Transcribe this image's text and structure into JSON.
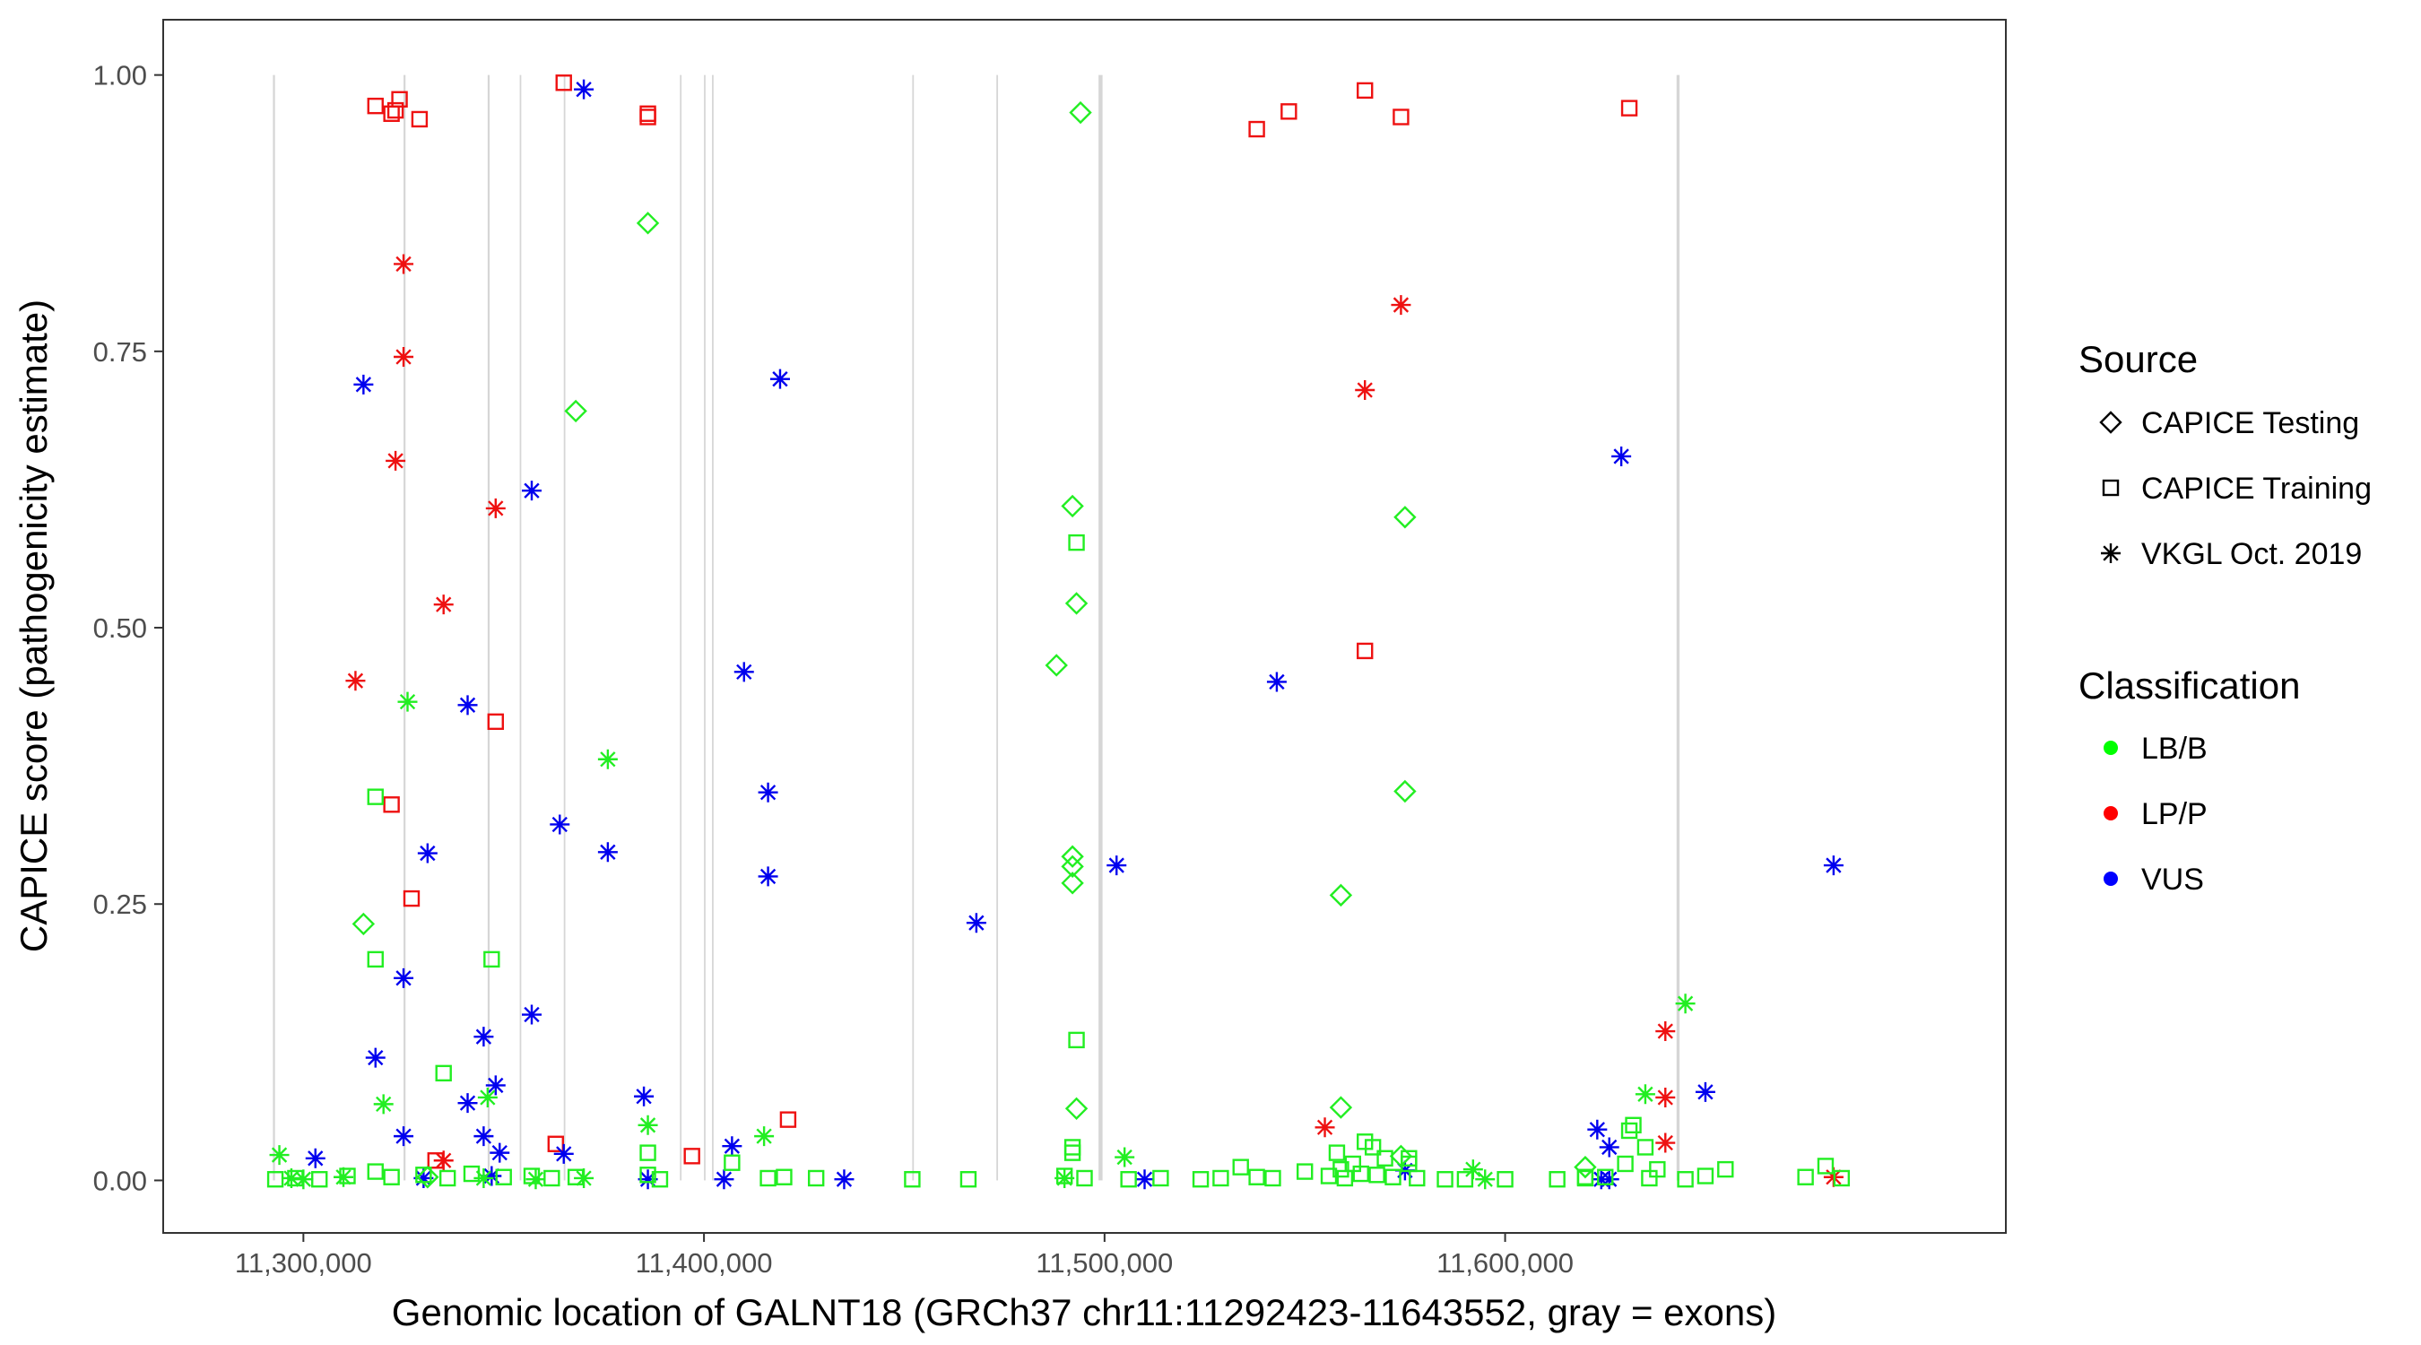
{
  "chart_data": {
    "type": "scatter",
    "title": "",
    "xlabel": "Genomic location of GALNT18 (GRCh37 chr11:11292423-11643552, gray = exons)",
    "ylabel": "CAPICE score (pathogenicity estimate)",
    "xlim": [
      11265000,
      11725000
    ],
    "ylim": [
      -0.0475,
      1.05
    ],
    "x_ticks": [
      11300000,
      11400000,
      11500000,
      11600000
    ],
    "x_tick_labels": [
      "11,300,000",
      "11,400,000",
      "11,500,000",
      "11,600,000"
    ],
    "y_ticks": [
      0,
      0.25,
      0.5,
      0.75,
      1.0
    ],
    "y_tick_labels": [
      "0.00",
      "0.25",
      "0.50",
      "0.75",
      "1.00"
    ],
    "grid": false,
    "exons": [
      [
        11292400,
        11292900
      ],
      [
        11325000,
        11325500
      ],
      [
        11346000,
        11346500
      ],
      [
        11354000,
        11354400
      ],
      [
        11365000,
        11365400
      ],
      [
        11394000,
        11394400
      ],
      [
        11400000,
        11400400
      ],
      [
        11402000,
        11402400
      ],
      [
        11452000,
        11452400
      ],
      [
        11473000,
        11473400
      ],
      [
        11498500,
        11499500
      ],
      [
        11642800,
        11643552
      ]
    ],
    "legend": {
      "position": "right",
      "source_title": "Source",
      "source_items": [
        {
          "label": "CAPICE Testing",
          "shape": "diamond"
        },
        {
          "label": "CAPICE Training",
          "shape": "square"
        },
        {
          "label": "VKGL Oct. 2019",
          "shape": "asterisk"
        }
      ],
      "class_title": "Classification",
      "class_items": [
        {
          "label": "LB/B",
          "color": "#00ff00"
        },
        {
          "label": "LP/P",
          "color": "#ff0000"
        },
        {
          "label": "VUS",
          "color": "#0000ff"
        }
      ]
    },
    "colors": {
      "LB/B": "#22ee22",
      "LP/P": "#ee1111",
      "VUS": "#0000ee"
    },
    "series": [
      {
        "name": "CAPICE Training / LP/P",
        "source": "CAPICE Training",
        "classification": "LP/P",
        "x": [
          11318000,
          11322000,
          11324000,
          11323000,
          11329000,
          11365000,
          11386000,
          11386000,
          11327000,
          11322000,
          11348000,
          11363000,
          11333000,
          11421000,
          11397000,
          11538000,
          11546000,
          11565000,
          11574000,
          11631000,
          11565000
        ],
        "y": [
          0.972,
          0.965,
          0.978,
          0.968,
          0.96,
          0.993,
          0.965,
          0.962,
          0.255,
          0.34,
          0.415,
          0.033,
          0.018,
          0.055,
          0.022,
          0.951,
          0.967,
          0.986,
          0.962,
          0.97,
          0.479
        ]
      },
      {
        "name": "VKGL Oct. 2019 / LP/P",
        "source": "VKGL Oct. 2019",
        "classification": "LP/P",
        "x": [
          11325000,
          11325000,
          11323000,
          11348000,
          11335000,
          11313000,
          11335000,
          11555000,
          11565000,
          11574000,
          11640000,
          11640000,
          11640000,
          11682000
        ],
        "y": [
          0.829,
          0.745,
          0.651,
          0.608,
          0.521,
          0.452,
          0.018,
          0.048,
          0.715,
          0.792,
          0.135,
          0.075,
          0.034,
          0.003
        ]
      },
      {
        "name": "VKGL Oct. 2019 / VUS",
        "source": "VKGL Oct. 2019",
        "classification": "VUS",
        "x": [
          11370000,
          11315000,
          11357000,
          11419000,
          11341000,
          11364000,
          11376000,
          11331000,
          11325000,
          11357000,
          11345000,
          11348000,
          11318000,
          11341000,
          11345000,
          11325000,
          11349000,
          11385000,
          11386000,
          11407000,
          11410000,
          11416000,
          11416000,
          11468000,
          11503000,
          11543000,
          11629000,
          11623000,
          11650000,
          11626000,
          11624000,
          11682000,
          11303000,
          11330000,
          11347000,
          11365000,
          11405000,
          11435000,
          11510000,
          11575000,
          11626000
        ],
        "y": [
          0.987,
          0.72,
          0.624,
          0.725,
          0.43,
          0.322,
          0.297,
          0.296,
          0.183,
          0.15,
          0.13,
          0.086,
          0.111,
          0.07,
          0.04,
          0.04,
          0.025,
          0.076,
          0.001,
          0.031,
          0.46,
          0.351,
          0.275,
          0.233,
          0.285,
          0.451,
          0.655,
          0.046,
          0.08,
          0.03,
          0.001,
          0.285,
          0.02,
          0.002,
          0.004,
          0.024,
          0.001,
          0.001,
          0.001,
          0.009,
          0.001
        ]
      },
      {
        "name": "VKGL Oct. 2019 / LB/B",
        "source": "VKGL Oct. 2019",
        "classification": "LB/B",
        "x": [
          11294000,
          11326000,
          11320000,
          11346000,
          11376000,
          11386000,
          11415000,
          11505000,
          11592000,
          11635000,
          11645000,
          11297000,
          11300000,
          11310000,
          11345000,
          11358000,
          11370000,
          11490000,
          11595000
        ],
        "y": [
          0.023,
          0.433,
          0.069,
          0.075,
          0.381,
          0.05,
          0.04,
          0.021,
          0.01,
          0.078,
          0.16,
          0.002,
          0.001,
          0.003,
          0.002,
          0.001,
          0.002,
          0.002,
          0.001
        ]
      },
      {
        "name": "CAPICE Training / LB/B",
        "source": "CAPICE Training",
        "classification": "LB/B",
        "x": [
          11318000,
          11318000,
          11347000,
          11335000,
          11493000,
          11493000,
          11492000,
          11492000,
          11386000,
          11386000,
          11558000,
          11565000,
          11567000,
          11559000,
          11562000,
          11570000,
          11576000,
          11576000,
          11631000,
          11632000,
          11635000,
          11638000,
          11630000,
          11620000,
          11293000,
          11298000,
          11304000,
          11311000,
          11318000,
          11322000,
          11330000,
          11336000,
          11342000,
          11350000,
          11357000,
          11362000,
          11368000,
          11389000,
          11407000,
          11416000,
          11420000,
          11428000,
          11452000,
          11466000,
          11490000,
          11495000,
          11506000,
          11514000,
          11524000,
          11529000,
          11534000,
          11538000,
          11542000,
          11550000,
          11556000,
          11560000,
          11564000,
          11568000,
          11572000,
          11578000,
          11585000,
          11590000,
          11600000,
          11613000,
          11620000,
          11625000,
          11636000,
          11645000,
          11650000,
          11655000,
          11675000,
          11680000,
          11684000
        ],
        "y": [
          0.347,
          0.2,
          0.2,
          0.097,
          0.577,
          0.127,
          0.03,
          0.025,
          0.025,
          0.005,
          0.025,
          0.035,
          0.03,
          0.01,
          0.015,
          0.02,
          0.02,
          0.015,
          0.045,
          0.05,
          0.03,
          0.01,
          0.015,
          0.003,
          0.001,
          0.002,
          0.001,
          0.004,
          0.008,
          0.003,
          0.005,
          0.002,
          0.006,
          0.003,
          0.004,
          0.002,
          0.003,
          0.001,
          0.016,
          0.002,
          0.003,
          0.002,
          0.001,
          0.001,
          0.004,
          0.002,
          0.001,
          0.002,
          0.001,
          0.002,
          0.012,
          0.003,
          0.002,
          0.008,
          0.004,
          0.002,
          0.006,
          0.005,
          0.003,
          0.002,
          0.001,
          0.001,
          0.001,
          0.001,
          0.002,
          0.003,
          0.002,
          0.001,
          0.004,
          0.01,
          0.003,
          0.013,
          0.002
        ]
      },
      {
        "name": "CAPICE Testing / LB/B",
        "source": "CAPICE Testing",
        "classification": "LB/B",
        "x": [
          11494000,
          11386000,
          11368000,
          11492000,
          11488000,
          11493000,
          11492000,
          11492000,
          11492000,
          11575000,
          11575000,
          11559000,
          11559000,
          11315000,
          11493000,
          11574000,
          11620000,
          11331000
        ],
        "y": [
          0.966,
          0.866,
          0.696,
          0.61,
          0.466,
          0.522,
          0.293,
          0.284,
          0.269,
          0.6,
          0.352,
          0.258,
          0.066,
          0.232,
          0.065,
          0.022,
          0.012,
          0.003
        ]
      }
    ]
  }
}
